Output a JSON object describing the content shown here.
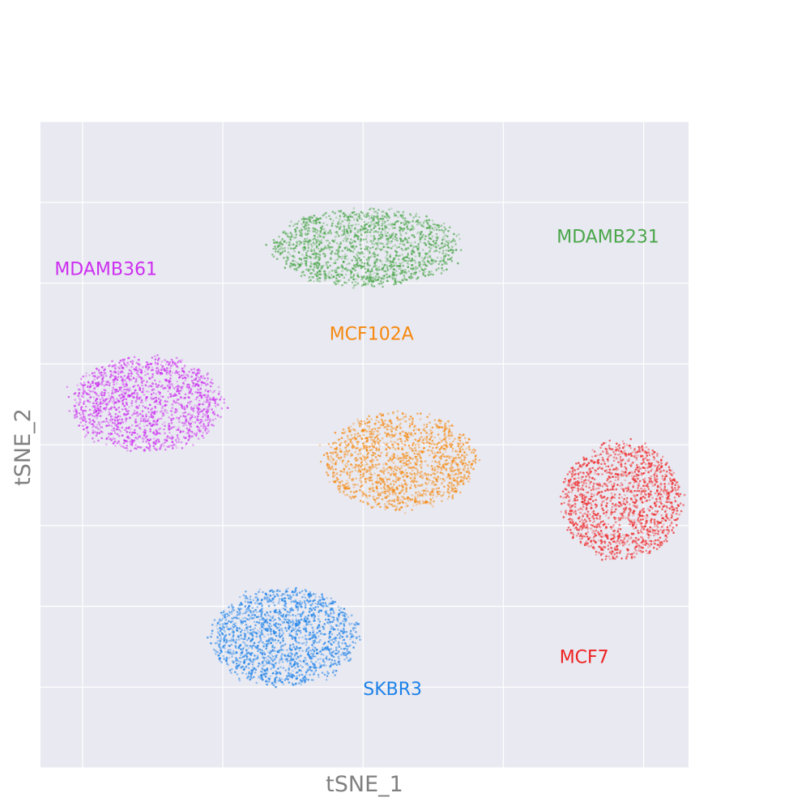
{
  "chart_data": {
    "type": "scatter",
    "title": "",
    "xlabel": "tSNE_1",
    "ylabel": "tSNE_2",
    "grid": true,
    "tick_labels_visible": false,
    "xlim": [
      -3.3,
      19.8
    ],
    "ylim": [
      -20.0,
      20.0
    ],
    "xgrid": [
      -1.8,
      3.2,
      8.2,
      13.2,
      18.2
    ],
    "ygrid": [
      -20.0,
      -15.0,
      -10.0,
      -5.0,
      0.0,
      5.0,
      10.0,
      15.0,
      20.0
    ],
    "series": [
      {
        "name": "MDAMB231",
        "color": "#4aa64a",
        "label_at": [
          15.1,
          12.5
        ],
        "center": [
          8.3,
          12.2
        ],
        "spread": [
          3.3,
          2.4
        ],
        "count": 1600
      },
      {
        "name": "MDAMB361",
        "color": "#cc2ef0",
        "label_at": [
          -2.8,
          10.5
        ],
        "center": [
          0.5,
          2.5
        ],
        "spread": [
          2.7,
          2.9
        ],
        "count": 1500
      },
      {
        "name": "MCF102A",
        "color": "#f5890f",
        "label_at": [
          7.0,
          6.5
        ],
        "center": [
          9.5,
          -1.0
        ],
        "spread": [
          2.7,
          3.0
        ],
        "count": 1500
      },
      {
        "name": "MCF7",
        "color": "#ee2222",
        "label_at": [
          15.2,
          -13.5
        ],
        "center": [
          17.4,
          -3.5
        ],
        "spread": [
          2.1,
          3.6
        ],
        "count": 1500
      },
      {
        "name": "SKBR3",
        "color": "#1d82e8",
        "label_at": [
          8.2,
          -15.5
        ],
        "center": [
          5.4,
          -11.9
        ],
        "spread": [
          2.6,
          3.0
        ],
        "count": 1600
      }
    ]
  }
}
